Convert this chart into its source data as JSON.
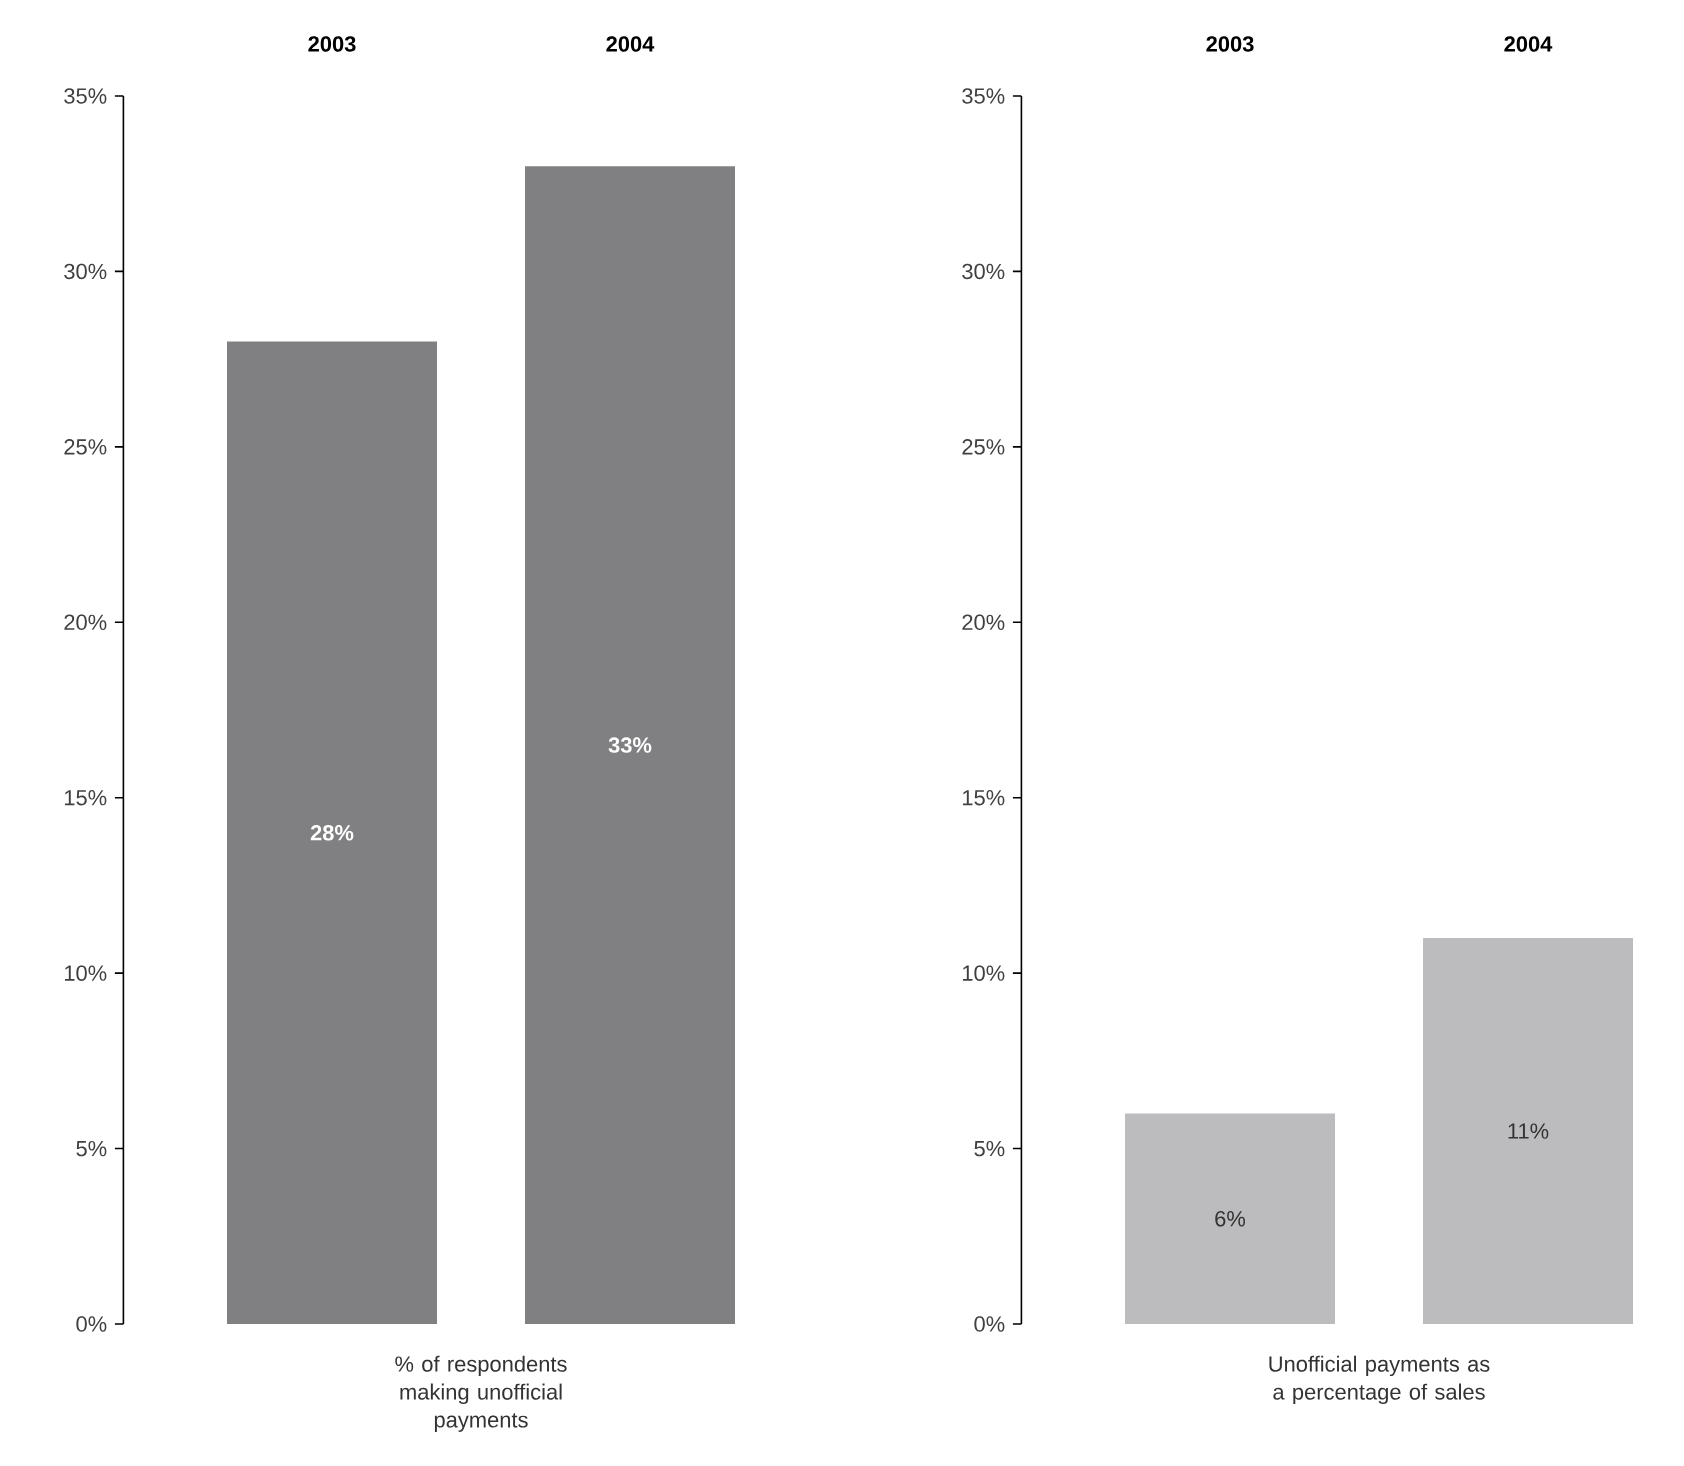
{
  "chart_data": [
    {
      "type": "bar",
      "xlabel": "% of respondents making unofficial payments",
      "categories": [
        "2003",
        "2004"
      ],
      "values": [
        28,
        33
      ],
      "value_labels": [
        "28%",
        "33%"
      ],
      "color": "#808083",
      "ylim": [
        0,
        35
      ],
      "yticks": [
        {
          "value": 0,
          "label": "0%"
        },
        {
          "value": 5,
          "label": "5%"
        },
        {
          "value": 10,
          "label": "10%"
        },
        {
          "value": 15,
          "label": "15%"
        },
        {
          "value": 20,
          "label": "20%"
        },
        {
          "value": 25,
          "label": "25%"
        },
        {
          "value": 30,
          "label": "30%"
        },
        {
          "value": 35,
          "label": "35%"
        }
      ]
    },
    {
      "type": "bar",
      "xlabel": "Unofficial payments as a percentage of sales",
      "categories": [
        "2003",
        "2004"
      ],
      "values": [
        6,
        11
      ],
      "value_labels": [
        "6%",
        "11%"
      ],
      "color": "#bcbcbe",
      "ylim": [
        0,
        35
      ],
      "yticks": [
        {
          "value": 0,
          "label": "0%"
        },
        {
          "value": 5,
          "label": "5%"
        },
        {
          "value": 10,
          "label": "10%"
        },
        {
          "value": 15,
          "label": "15%"
        },
        {
          "value": 20,
          "label": "20%"
        },
        {
          "value": 25,
          "label": "25%"
        },
        {
          "value": 30,
          "label": "30%"
        },
        {
          "value": 35,
          "label": "35%"
        }
      ]
    }
  ]
}
